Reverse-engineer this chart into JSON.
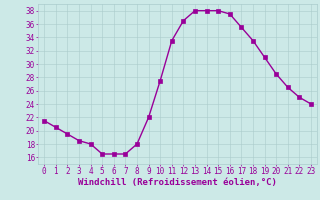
{
  "x": [
    0,
    1,
    2,
    3,
    4,
    5,
    6,
    7,
    8,
    9,
    10,
    11,
    12,
    13,
    14,
    15,
    16,
    17,
    18,
    19,
    20,
    21,
    22,
    23
  ],
  "y": [
    21.5,
    20.5,
    19.5,
    18.5,
    18.0,
    16.5,
    16.5,
    16.5,
    18.0,
    22.0,
    27.5,
    33.5,
    36.5,
    38.0,
    38.0,
    38.0,
    37.5,
    35.5,
    33.5,
    31.0,
    28.5,
    26.5,
    25.0,
    24.0
  ],
  "line_color": "#990099",
  "marker": "s",
  "marker_size": 2.5,
  "xlabel": "Windchill (Refroidissement éolien,°C)",
  "xlim": [
    -0.5,
    23.5
  ],
  "ylim": [
    15,
    39
  ],
  "yticks": [
    16,
    18,
    20,
    22,
    24,
    26,
    28,
    30,
    32,
    34,
    36,
    38
  ],
  "xticks": [
    0,
    1,
    2,
    3,
    4,
    5,
    6,
    7,
    8,
    9,
    10,
    11,
    12,
    13,
    14,
    15,
    16,
    17,
    18,
    19,
    20,
    21,
    22,
    23
  ],
  "bg_color": "#cce9e7",
  "grid_color": "#aacccc",
  "xlabel_color": "#990099",
  "tick_color": "#990099",
  "xlabel_fontsize": 6.5,
  "tick_fontsize": 5.5,
  "linewidth": 1.0
}
